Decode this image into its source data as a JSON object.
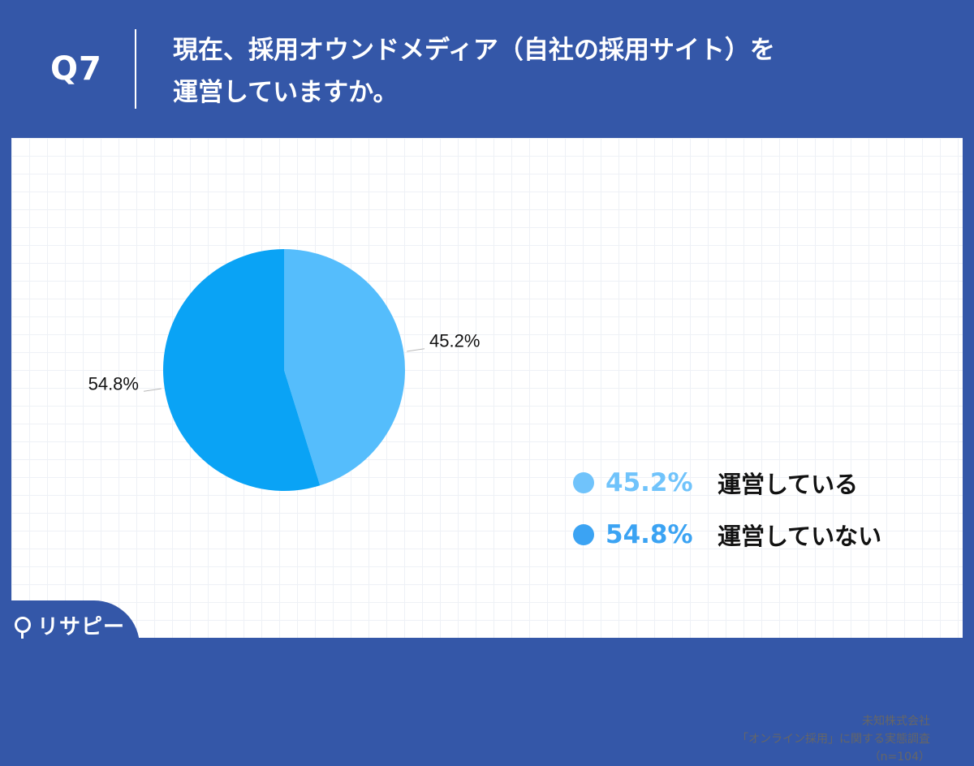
{
  "header": {
    "qnum": "Q7",
    "title_line1": "現在、採用オウンドメディア（自社の採用サイト）を",
    "title_line2": "運営していますか。"
  },
  "chart_data": {
    "type": "pie",
    "categories": [
      "運営している",
      "運営していない"
    ],
    "values": [
      45.2,
      54.8
    ],
    "labels": [
      "45.2%",
      "54.8%"
    ],
    "colors": [
      "#55bdfc",
      "#0aa3f5"
    ],
    "legend_colors": [
      "#70c3fb",
      "#3ba3f3"
    ],
    "legend_placement": "right"
  },
  "legend": [
    {
      "pct": "45.2%",
      "label": "運営している"
    },
    {
      "pct": "54.8%",
      "label": "運営していない"
    }
  ],
  "source": {
    "line1": "未知株式会社",
    "line2": "「オンライン採用」に関する実態調査",
    "line3": "（n=104）"
  },
  "brand": {
    "name": "リサピー"
  }
}
